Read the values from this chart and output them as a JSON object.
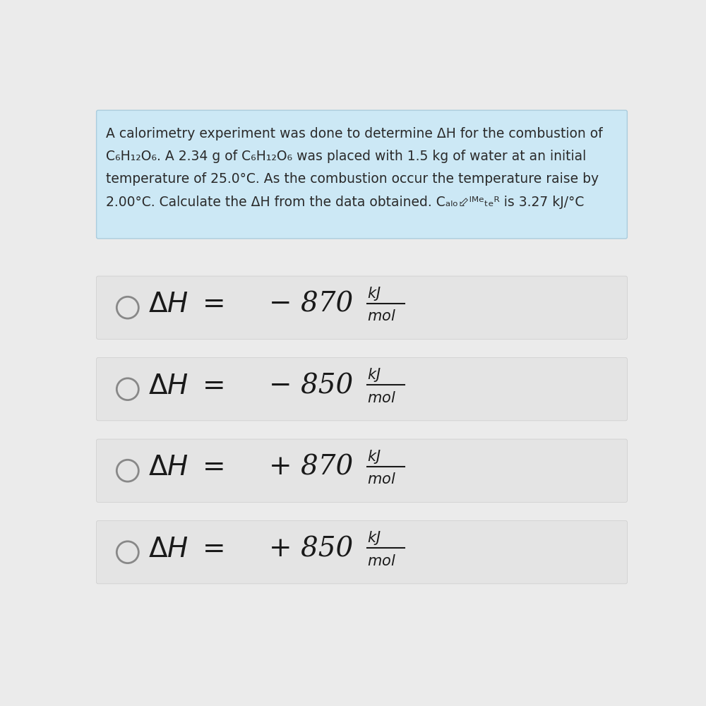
{
  "background_color": "#ebebeb",
  "question_box_color": "#cce8f5",
  "question_box_border": "#aaccdd",
  "answer_box_color": "#e4e4e4",
  "text_color": "#2a2a2a",
  "dark_text": "#1a1a1a",
  "circle_color": "#888888",
  "question_text_lines": [
    "A calorimetry experiment was done to determine ΔH for the combustion of",
    "C₆H₁₂O₆. A 2.34 g of C₆H₁₂O₆ was placed with 1.5 kg of water at an initial",
    "temperature of 25.0°C. As the combustion occur the temperature raise by",
    "2.00°C. Calculate the ΔH from the data obtained. Cₐₗₒ⬃ᴵᴹᵉₜₑᴿ is 3.27 kJ/°C"
  ],
  "answers": [
    {
      "sign": "-",
      "value": "870"
    },
    {
      "sign": "-",
      "value": "850"
    },
    {
      "sign": "+",
      "value": "870"
    },
    {
      "sign": "+",
      "value": "850"
    }
  ]
}
